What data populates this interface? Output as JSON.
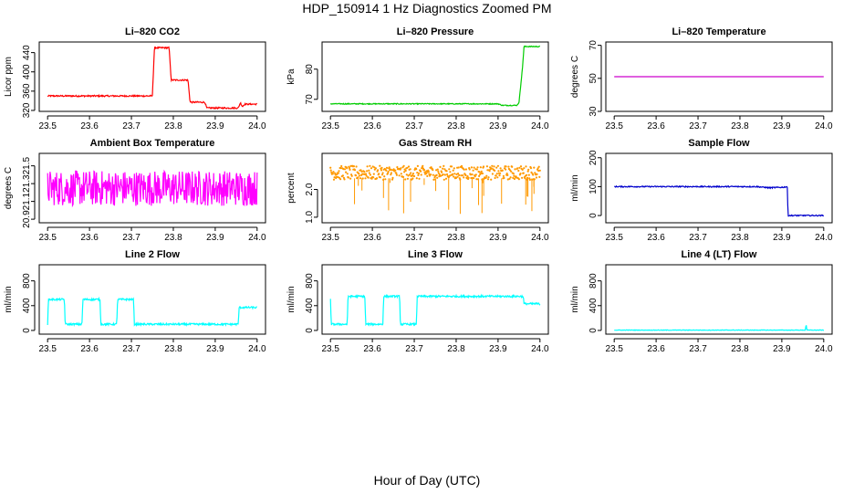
{
  "figure": {
    "title": "HDP_150914  1 Hz Diagnostics Zoomed PM",
    "xlabel": "Hour of Day (UTC)"
  },
  "chart_data": [
    {
      "type": "line",
      "title": "Li–820 CO2",
      "ylabel": "Licor ppm",
      "color": "#ff0000",
      "xlim": [
        23.5,
        24.0
      ],
      "ylim": [
        318,
        462
      ],
      "xticks": [
        "23.5",
        "23.6",
        "23.7",
        "23.8",
        "23.9",
        "24.0"
      ],
      "xtick_values": [
        23.5,
        23.6,
        23.7,
        23.8,
        23.9,
        24.0
      ],
      "yticks": [
        "320",
        "360",
        "400",
        "440"
      ],
      "ytick_values": [
        320,
        360,
        400,
        440
      ],
      "series": [
        {
          "points": [
            [
              23.5,
              350
            ],
            [
              23.65,
              350
            ],
            [
              23.75,
              350
            ],
            [
              23.755,
              450
            ],
            [
              23.79,
              450
            ],
            [
              23.795,
              383
            ],
            [
              23.835,
              383
            ],
            [
              23.84,
              337
            ],
            [
              23.875,
              337
            ],
            [
              23.88,
              325
            ],
            [
              23.955,
              325
            ],
            [
              23.96,
              336
            ],
            [
              23.965,
              328
            ],
            [
              23.97,
              333
            ],
            [
              24.0,
              333
            ]
          ],
          "noise": 1.5
        }
      ]
    },
    {
      "type": "line",
      "title": "Li–820 Pressure",
      "ylabel": "kPa",
      "color": "#00cc00",
      "xlim": [
        23.5,
        24.0
      ],
      "ylim": [
        66,
        89
      ],
      "xticks": [
        "23.5",
        "23.6",
        "23.7",
        "23.8",
        "23.9",
        "24.0"
      ],
      "xtick_values": [
        23.5,
        23.6,
        23.7,
        23.8,
        23.9,
        24.0
      ],
      "yticks": [
        "70",
        "80"
      ],
      "ytick_values": [
        70,
        80
      ],
      "series": [
        {
          "points": [
            [
              23.5,
              68.5
            ],
            [
              23.9,
              68.5
            ],
            [
              23.91,
              68
            ],
            [
              23.945,
              68
            ],
            [
              23.95,
              69
            ],
            [
              23.958,
              80
            ],
            [
              23.962,
              87.5
            ],
            [
              24.0,
              87.5
            ]
          ],
          "noise": 0.15
        }
      ]
    },
    {
      "type": "line",
      "title": "Li–820 Temperature",
      "ylabel": "degrees C",
      "color": "#cc00cc",
      "xlim": [
        23.5,
        24.0
      ],
      "ylim": [
        30,
        72
      ],
      "xticks": [
        "23.5",
        "23.6",
        "23.7",
        "23.8",
        "23.9",
        "24.0"
      ],
      "xtick_values": [
        23.5,
        23.6,
        23.7,
        23.8,
        23.9,
        24.0
      ],
      "yticks": [
        "30",
        "50",
        "70"
      ],
      "ytick_values": [
        30,
        50,
        70
      ],
      "series": [
        {
          "points": [
            [
              23.5,
              51
            ],
            [
              24.0,
              51
            ]
          ],
          "noise": 0
        }
      ]
    },
    {
      "type": "line",
      "title": "Ambient Box Temperature",
      "ylabel": "degrees C",
      "color": "#ff00ff",
      "xlim": [
        23.5,
        24.0
      ],
      "ylim": [
        20.86,
        21.64
      ],
      "xticks": [
        "23.5",
        "23.6",
        "23.7",
        "23.8",
        "23.9",
        "24.0"
      ],
      "xtick_values": [
        23.5,
        23.6,
        23.7,
        23.8,
        23.9,
        24.0
      ],
      "yticks": [
        "20.9",
        "21.1",
        "21.3",
        "21.5"
      ],
      "ytick_values": [
        20.9,
        21.1,
        21.3,
        21.5
      ],
      "series": [
        {
          "points": [
            [
              23.5,
              21.25
            ],
            [
              24.0,
              21.25
            ]
          ],
          "noise": 0.2
        }
      ]
    },
    {
      "type": "scatter",
      "title": "Gas Stream RH",
      "ylabel": "percent",
      "color": "#ff9900",
      "xlim": [
        23.5,
        24.0
      ],
      "ylim": [
        0.8,
        3.3
      ],
      "xticks": [
        "23.5",
        "23.6",
        "23.7",
        "23.8",
        "23.9",
        "24.0"
      ],
      "xtick_values": [
        23.5,
        23.6,
        23.7,
        23.8,
        23.9,
        24.0
      ],
      "yticks": [
        "1.0",
        "2.0"
      ],
      "ytick_values": [
        1.0,
        2.0
      ],
      "series": [
        {
          "points": [
            [
              23.5,
              2.6
            ],
            [
              24.0,
              2.6
            ]
          ],
          "noise": 0.25
        }
      ]
    },
    {
      "type": "line",
      "title": "Sample Flow",
      "ylabel": "ml/min",
      "color": "#0000cc",
      "xlim": [
        23.5,
        24.0
      ],
      "ylim": [
        -25,
        215
      ],
      "xticks": [
        "23.5",
        "23.6",
        "23.7",
        "23.8",
        "23.9",
        "24.0"
      ],
      "xtick_values": [
        23.5,
        23.6,
        23.7,
        23.8,
        23.9,
        24.0
      ],
      "yticks": [
        "0",
        "100",
        "200"
      ],
      "ytick_values": [
        0,
        100,
        200
      ],
      "series": [
        {
          "points": [
            [
              23.5,
              100
            ],
            [
              23.84,
              100
            ],
            [
              23.87,
              96
            ],
            [
              23.905,
              98
            ],
            [
              23.913,
              100
            ],
            [
              23.915,
              0
            ],
            [
              24.0,
              0
            ]
          ],
          "noise": 2
        }
      ]
    },
    {
      "type": "line",
      "title": "Line 2 Flow",
      "ylabel": "ml/min",
      "color": "#00ffff",
      "xlim": [
        23.5,
        24.0
      ],
      "ylim": [
        -60,
        1060
      ],
      "xticks": [
        "23.5",
        "23.6",
        "23.7",
        "23.8",
        "23.9",
        "24.0"
      ],
      "xtick_values": [
        23.5,
        23.6,
        23.7,
        23.8,
        23.9,
        24.0
      ],
      "yticks": [
        "0",
        "400",
        "800"
      ],
      "ytick_values": [
        0,
        400,
        800
      ],
      "series": [
        {
          "points": [
            [
              23.5,
              100
            ],
            [
              23.502,
              500
            ],
            [
              23.54,
              500
            ],
            [
              23.542,
              100
            ],
            [
              23.582,
              100
            ],
            [
              23.584,
              500
            ],
            [
              23.625,
              500
            ],
            [
              23.627,
              100
            ],
            [
              23.665,
              100
            ],
            [
              23.667,
              500
            ],
            [
              23.705,
              500
            ],
            [
              23.707,
              100
            ],
            [
              23.955,
              100
            ],
            [
              23.957,
              370
            ],
            [
              24.0,
              370
            ]
          ],
          "noise": 15
        }
      ]
    },
    {
      "type": "line",
      "title": "Line 3 Flow",
      "ylabel": "ml/min",
      "color": "#00ffff",
      "xlim": [
        23.5,
        24.0
      ],
      "ylim": [
        -60,
        1060
      ],
      "xticks": [
        "23.5",
        "23.6",
        "23.7",
        "23.8",
        "23.9",
        "24.0"
      ],
      "xtick_values": [
        23.5,
        23.6,
        23.7,
        23.8,
        23.9,
        24.0
      ],
      "yticks": [
        "0",
        "400",
        "800"
      ],
      "ytick_values": [
        0,
        400,
        800
      ],
      "series": [
        {
          "points": [
            [
              23.5,
              500
            ],
            [
              23.502,
              100
            ],
            [
              23.54,
              100
            ],
            [
              23.542,
              550
            ],
            [
              23.582,
              550
            ],
            [
              23.584,
              100
            ],
            [
              23.625,
              100
            ],
            [
              23.627,
              550
            ],
            [
              23.665,
              550
            ],
            [
              23.667,
              100
            ],
            [
              23.705,
              100
            ],
            [
              23.707,
              550
            ],
            [
              23.96,
              550
            ],
            [
              23.962,
              430
            ],
            [
              24.0,
              430
            ]
          ],
          "noise": 15
        }
      ]
    },
    {
      "type": "line",
      "title": "Line 4 (LT) Flow",
      "ylabel": "ml/min",
      "color": "#00ffff",
      "xlim": [
        23.5,
        24.0
      ],
      "ylim": [
        -60,
        1060
      ],
      "xticks": [
        "23.5",
        "23.6",
        "23.7",
        "23.8",
        "23.9",
        "24.0"
      ],
      "xtick_values": [
        23.5,
        23.6,
        23.7,
        23.8,
        23.9,
        24.0
      ],
      "yticks": [
        "0",
        "400",
        "800"
      ],
      "ytick_values": [
        0,
        400,
        800
      ],
      "series": [
        {
          "points": [
            [
              23.5,
              5
            ],
            [
              23.956,
              5
            ],
            [
              23.958,
              100
            ],
            [
              23.96,
              5
            ],
            [
              24.0,
              5
            ]
          ],
          "noise": 4
        }
      ]
    }
  ]
}
